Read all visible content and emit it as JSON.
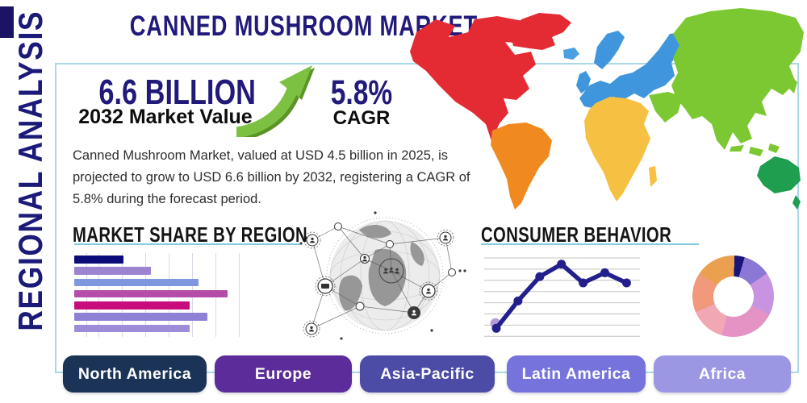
{
  "title": "CANNED MUSHROOM MARKET",
  "side_label": "REGIONAL ANALYSIS",
  "stats": {
    "market_value": "6.6 BILLION",
    "market_value_caption": "2032 Market Value",
    "cagr_value": "5.8%",
    "cagr_caption": "CAGR",
    "arrow_color": "#7cc142",
    "arrow_shadow_color": "#5a9427"
  },
  "description": "Canned Mushroom Market, valued at USD 4.5 billion in 2025, is projected to grow to USD 6.6 billion by 2032, registering a CAGR of 5.8% during the forecast period.",
  "regions": [
    {
      "label": "North America",
      "color": "#1b3356"
    },
    {
      "label": "Europe",
      "color": "#5c2d9a"
    },
    {
      "label": "Asia-Pacific",
      "color": "#4c4ba5"
    },
    {
      "label": "Latin America",
      "color": "#7673dc"
    },
    {
      "label": "Africa",
      "color": "#9b97e3"
    }
  ],
  "map": {
    "continent_colors": {
      "north_america": "#e42b34",
      "greenland": "#e42b34",
      "south_america": "#f08a20",
      "europe": "#3f96dc",
      "iceland": "#4a9fe0",
      "uk": "#3f96dc",
      "africa": "#f6c143",
      "madagascar": "#f6c143",
      "asia": "#7cc832",
      "arabia": "#7cc832",
      "australia": "#1e9e4e",
      "new_zealand": "#1e9e4e"
    }
  },
  "chart_data": [
    {
      "type": "bar",
      "title": "MARKET SHARE BY REGION",
      "orientation": "horizontal",
      "axis_labels_visible": false,
      "categories": [
        "bar-1",
        "bar-2",
        "bar-3",
        "bar-4",
        "bar-5",
        "bar-6",
        "bar-7"
      ],
      "values_pct_of_max": [
        32,
        50,
        81,
        100,
        75,
        87,
        75
      ],
      "bar_colors": [
        "#0c0b7a",
        "#9d84d1",
        "#7e97de",
        "#b44ca9",
        "#c90c7d",
        "#8d80d5",
        "#9f8cd8"
      ],
      "grid": "vertical",
      "underline_color": "#82cbde"
    },
    {
      "type": "line",
      "title": "CONSUMER BEHAVIOR",
      "axis_labels_visible": false,
      "x": [
        1,
        2,
        3,
        4,
        5,
        6,
        7
      ],
      "values_pct": [
        10,
        45,
        76,
        92,
        68,
        81,
        68
      ],
      "line_color": "#23208c",
      "marker_color": "#23208c",
      "start_marker_color": "#b49bdc",
      "grid": "horizontal",
      "grid_color": "#c4c4c4"
    },
    {
      "type": "pie",
      "donut": true,
      "labels_visible": false,
      "slices": [
        {
          "color": "#181478",
          "pct": 4
        },
        {
          "color": "#8a77d6",
          "pct": 11
        },
        {
          "color": "#c894e2",
          "pct": 17
        },
        {
          "color": "#e592c4",
          "pct": 22
        },
        {
          "color": "#f2a7b5",
          "pct": 14
        },
        {
          "color": "#f1997b",
          "pct": 16
        },
        {
          "color": "#eaa04f",
          "pct": 16
        }
      ]
    }
  ]
}
